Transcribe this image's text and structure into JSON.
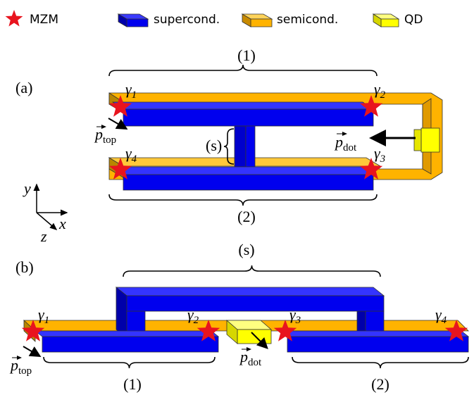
{
  "legend": [
    "MZM",
    "supercond.",
    "semicond.",
    "QD"
  ],
  "panel_a": {
    "label": "(a)",
    "brace_top": "(1)",
    "brace_bottom": "(2)",
    "brace_s": "(s)",
    "majoranas": [
      {
        "symbol": "γ",
        "sub": "1"
      },
      {
        "symbol": "γ",
        "sub": "2"
      },
      {
        "symbol": "γ",
        "sub": "3"
      },
      {
        "symbol": "γ",
        "sub": "4"
      }
    ],
    "p_top": {
      "symbol": "p",
      "sub": "top"
    },
    "p_dot": {
      "symbol": "p",
      "sub": "dot"
    },
    "axes": {
      "y": "y",
      "x": "x",
      "z": "z"
    }
  },
  "panel_b": {
    "label": "(b)",
    "brace_top": "(s)",
    "brace_left": "(1)",
    "brace_right": "(2)",
    "majoranas": [
      {
        "symbol": "γ",
        "sub": "1"
      },
      {
        "symbol": "γ",
        "sub": "2"
      },
      {
        "symbol": "γ",
        "sub": "3"
      },
      {
        "symbol": "γ",
        "sub": "4"
      }
    ],
    "p_top": {
      "symbol": "p",
      "sub": "top"
    },
    "p_dot": {
      "symbol": "p",
      "sub": "dot"
    }
  }
}
